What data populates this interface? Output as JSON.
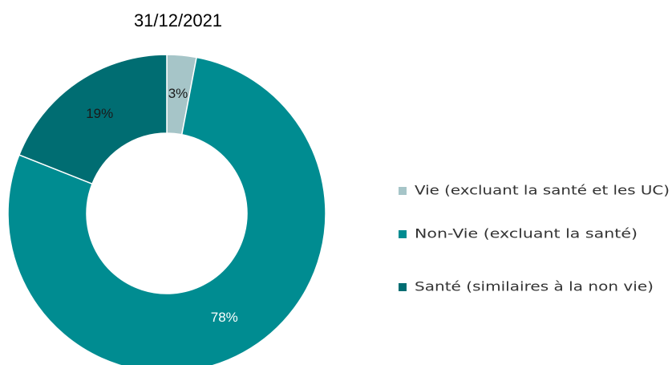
{
  "chart_data": {
    "type": "donut",
    "title": "31/12/2021",
    "categories": [
      "Vie (excluant la santé et les UC)",
      "Non-Vie (excluant la santé)",
      "Santé (similaires à la non vie)"
    ],
    "values": [
      3,
      78,
      19
    ],
    "value_labels": [
      "3%",
      "78%",
      "19%"
    ],
    "colors": [
      "#a6c5c8",
      "#008c91",
      "#006d72"
    ],
    "legend": "right"
  }
}
